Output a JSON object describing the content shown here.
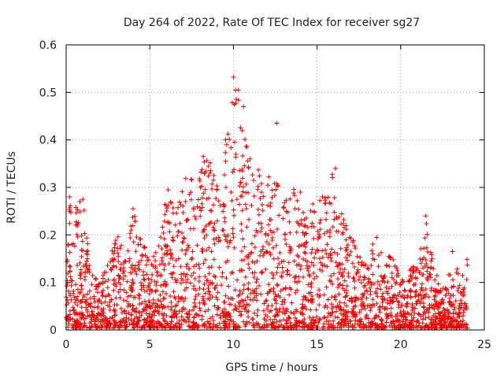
{
  "chart_data": {
    "type": "scatter",
    "title": "Day 264 of 2022, Rate Of TEC Index for receiver sg27",
    "xlabel": "GPS time / hours",
    "ylabel": "ROTI / TECUs",
    "xlim": [
      0,
      25
    ],
    "ylim": [
      0,
      0.6
    ],
    "xticks": [
      0,
      5,
      10,
      15,
      20,
      25
    ],
    "yticks": [
      0,
      0.1,
      0.2,
      0.3,
      0.4,
      0.5,
      0.6
    ],
    "xtick_labels": [
      "0",
      "5",
      "10",
      "15",
      "20",
      "25"
    ],
    "ytick_labels": [
      "0",
      "0.1",
      "0.2",
      "0.3",
      "0.4",
      "0.5",
      "0.6"
    ],
    "grid": true,
    "marker": "+",
    "color": "#ee0000",
    "envelope": [
      [
        0.0,
        0.16
      ],
      [
        0.2,
        0.28
      ],
      [
        0.5,
        0.26
      ],
      [
        1.0,
        0.27
      ],
      [
        1.5,
        0.12
      ],
      [
        2.0,
        0.1
      ],
      [
        2.5,
        0.14
      ],
      [
        3.0,
        0.21
      ],
      [
        3.5,
        0.15
      ],
      [
        4.0,
        0.25
      ],
      [
        4.5,
        0.2
      ],
      [
        5.0,
        0.14
      ],
      [
        5.5,
        0.17
      ],
      [
        6.0,
        0.29
      ],
      [
        6.5,
        0.25
      ],
      [
        7.0,
        0.3
      ],
      [
        7.5,
        0.35
      ],
      [
        8.0,
        0.33
      ],
      [
        8.5,
        0.37
      ],
      [
        9.0,
        0.33
      ],
      [
        9.5,
        0.39
      ],
      [
        9.8,
        0.45
      ],
      [
        10.0,
        0.53
      ],
      [
        10.3,
        0.5
      ],
      [
        10.6,
        0.47
      ],
      [
        11.0,
        0.36
      ],
      [
        11.5,
        0.35
      ],
      [
        12.0,
        0.32
      ],
      [
        12.5,
        0.32
      ],
      [
        13.0,
        0.26
      ],
      [
        13.5,
        0.3
      ],
      [
        14.0,
        0.28
      ],
      [
        14.5,
        0.24
      ],
      [
        15.0,
        0.29
      ],
      [
        15.5,
        0.3
      ],
      [
        16.0,
        0.34
      ],
      [
        16.5,
        0.24
      ],
      [
        17.0,
        0.21
      ],
      [
        17.5,
        0.15
      ],
      [
        18.0,
        0.14
      ],
      [
        18.5,
        0.21
      ],
      [
        19.0,
        0.14
      ],
      [
        19.5,
        0.16
      ],
      [
        20.0,
        0.1
      ],
      [
        20.5,
        0.12
      ],
      [
        21.0,
        0.14
      ],
      [
        21.5,
        0.24
      ],
      [
        22.0,
        0.12
      ],
      [
        22.5,
        0.1
      ],
      [
        23.0,
        0.12
      ],
      [
        23.5,
        0.13
      ],
      [
        24.0,
        0.15
      ]
    ],
    "outliers": [
      [
        10.0,
        0.532
      ],
      [
        10.3,
        0.505
      ],
      [
        10.6,
        0.47
      ],
      [
        12.6,
        0.435
      ],
      [
        9.6,
        0.39
      ],
      [
        11.0,
        0.36
      ],
      [
        8.2,
        0.365
      ],
      [
        16.1,
        0.34
      ],
      [
        0.2,
        0.28
      ],
      [
        1.0,
        0.275
      ],
      [
        4.0,
        0.255
      ],
      [
        6.1,
        0.295
      ],
      [
        21.5,
        0.24
      ],
      [
        23.1,
        0.165
      ],
      [
        14.0,
        0.29
      ]
    ]
  }
}
